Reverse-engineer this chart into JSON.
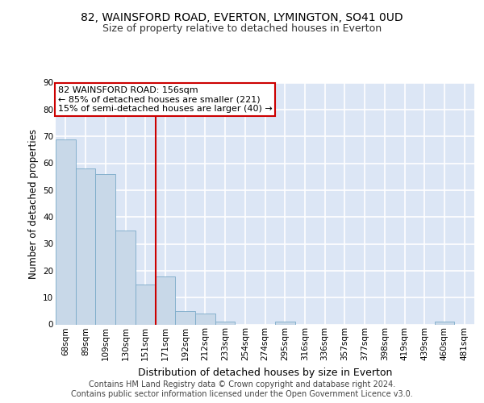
{
  "title1": "82, WAINSFORD ROAD, EVERTON, LYMINGTON, SO41 0UD",
  "title2": "Size of property relative to detached houses in Everton",
  "xlabel": "Distribution of detached houses by size in Everton",
  "ylabel": "Number of detached properties",
  "categories": [
    "68sqm",
    "89sqm",
    "109sqm",
    "130sqm",
    "151sqm",
    "171sqm",
    "192sqm",
    "212sqm",
    "233sqm",
    "254sqm",
    "274sqm",
    "295sqm",
    "316sqm",
    "336sqm",
    "357sqm",
    "377sqm",
    "398sqm",
    "419sqm",
    "439sqm",
    "460sqm",
    "481sqm"
  ],
  "values": [
    69,
    58,
    56,
    35,
    15,
    18,
    5,
    4,
    1,
    0,
    0,
    1,
    0,
    0,
    0,
    0,
    0,
    0,
    0,
    1,
    0
  ],
  "bar_color": "#c8d8e8",
  "bar_edge_color": "#7aaac8",
  "background_color": "#dce6f5",
  "grid_color": "#ffffff",
  "red_line_index": 4,
  "annotation_text": "82 WAINSFORD ROAD: 156sqm\n← 85% of detached houses are smaller (221)\n15% of semi-detached houses are larger (40) →",
  "annotation_box_color": "#ffffff",
  "annotation_box_edge_color": "#cc0000",
  "ylim": [
    0,
    90
  ],
  "yticks": [
    0,
    10,
    20,
    30,
    40,
    50,
    60,
    70,
    80,
    90
  ],
  "ytick_labels": [
    "0",
    "10",
    "20",
    "30",
    "40",
    "50",
    "60",
    "70",
    "80",
    "90"
  ],
  "footer_text": "Contains HM Land Registry data © Crown copyright and database right 2024.\nContains public sector information licensed under the Open Government Licence v3.0.",
  "title1_fontsize": 10,
  "title2_fontsize": 9,
  "xlabel_fontsize": 9,
  "ylabel_fontsize": 8.5,
  "tick_fontsize": 7.5,
  "annotation_fontsize": 8,
  "footer_fontsize": 7
}
